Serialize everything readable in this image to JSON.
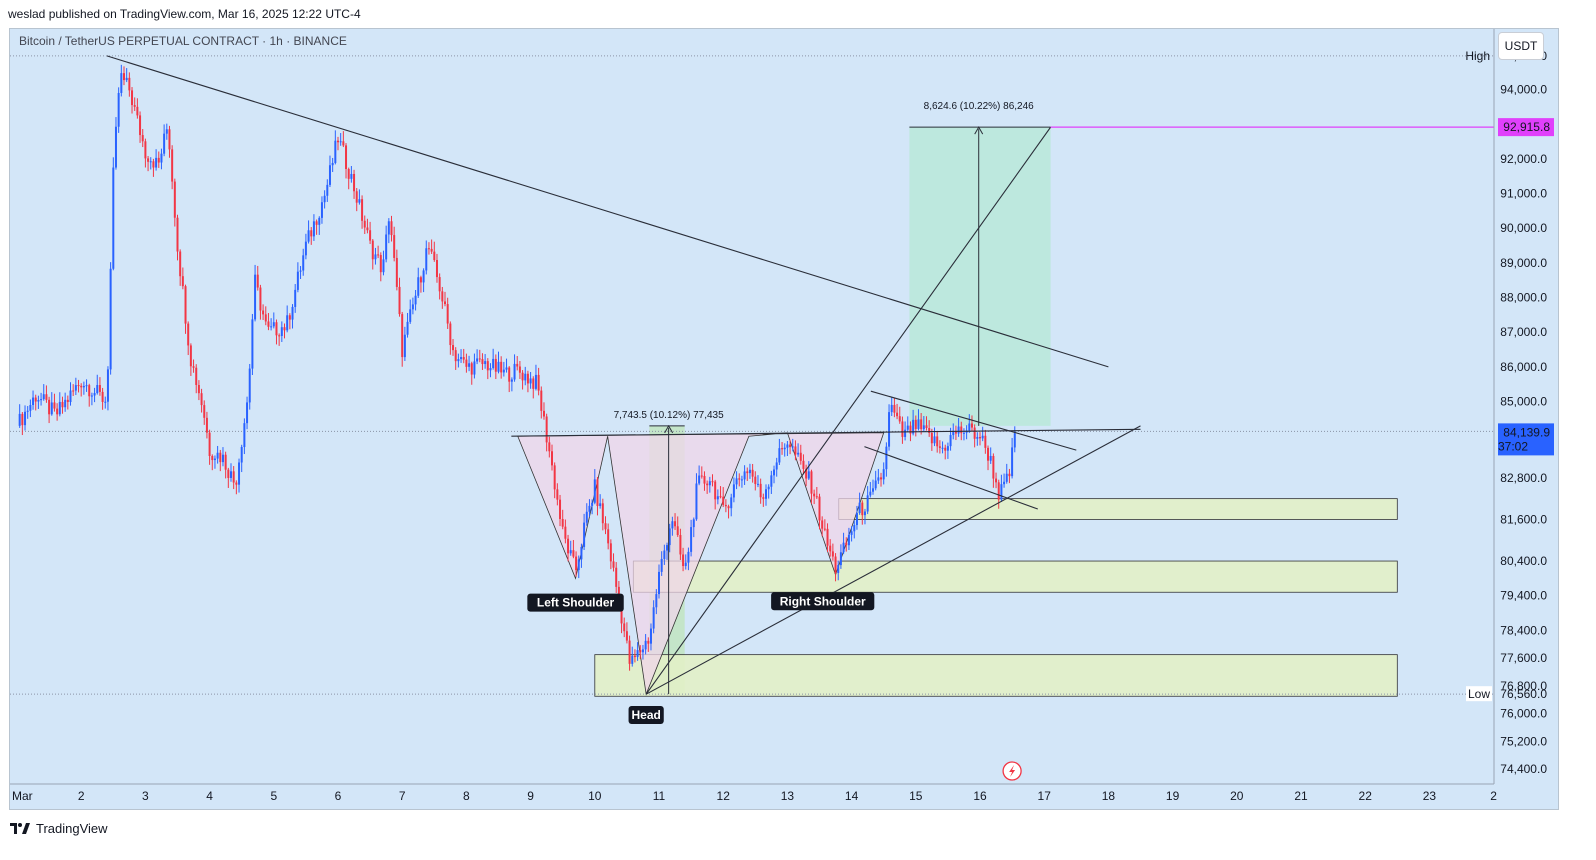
{
  "header": {
    "published": "weslad published on TradingView.com, Mar 16, 2025 12:22 UTC-4",
    "symbol": "Bitcoin / TetherUS PERPETUAL CONTRACT · 1h · BINANCE",
    "currency_button": "USDT"
  },
  "footer": {
    "brand": "TradingView"
  },
  "colors": {
    "background": "#d3e6f8",
    "bull": "#2962ff",
    "bear": "#f23645",
    "target_zone": "#b9e7d9",
    "pattern_fill": "#f0d5ea",
    "support_zone": "#e2f0c7",
    "target_line": "#e040fb",
    "current_price": "#2962ff"
  },
  "chart_data": {
    "type": "candlestick",
    "timeframe": "1h",
    "x_tick_labels": [
      "Mar",
      "2",
      "3",
      "4",
      "5",
      "6",
      "7",
      "8",
      "9",
      "10",
      "11",
      "12",
      "13",
      "14",
      "15",
      "16",
      "17",
      "18",
      "19",
      "20",
      "21",
      "22",
      "23",
      "2"
    ],
    "y_tick_labels": [
      "94,000.0",
      "93,000.0",
      "92,000.0",
      "91,000.0",
      "90,000.0",
      "89,000.0",
      "88,000.0",
      "87,000.0",
      "86,000.0",
      "85,000.0",
      "82,800.0",
      "81,600.0",
      "80,400.0",
      "79,400.0",
      "78,400.0",
      "77,600.0",
      "76,800.0",
      "76,000.0",
      "75,200.0",
      "74,400.0"
    ],
    "ylim": [
      74200,
      95400
    ],
    "high": {
      "label": "High",
      "value": "94,971.0"
    },
    "low": {
      "label": "Low",
      "value": "76,560.0"
    },
    "current_price": {
      "value": "84,139.9",
      "countdown": "37:02"
    },
    "target_price": {
      "value": "92,915.8"
    },
    "pattern_labels": [
      "Left Shoulder",
      "Head",
      "Right Shoulder"
    ],
    "measurements": [
      {
        "text": "7,743.5 (10.12%) 77,435"
      },
      {
        "text": "8,624.6 (10.22%) 86,246"
      }
    ],
    "approx_close_path": [
      {
        "day": 1.0,
        "price": 84300
      },
      {
        "day": 1.3,
        "price": 85200
      },
      {
        "day": 1.6,
        "price": 84600
      },
      {
        "day": 2.0,
        "price": 85600
      },
      {
        "day": 2.4,
        "price": 85000
      },
      {
        "day": 2.5,
        "price": 91500
      },
      {
        "day": 2.6,
        "price": 94400
      },
      {
        "day": 2.75,
        "price": 94000
      },
      {
        "day": 3.0,
        "price": 92200
      },
      {
        "day": 3.2,
        "price": 91800
      },
      {
        "day": 3.35,
        "price": 93000
      },
      {
        "day": 3.5,
        "price": 89500
      },
      {
        "day": 3.7,
        "price": 86300
      },
      {
        "day": 3.9,
        "price": 84800
      },
      {
        "day": 4.0,
        "price": 83600
      },
      {
        "day": 4.2,
        "price": 83400
      },
      {
        "day": 4.4,
        "price": 82600
      },
      {
        "day": 4.6,
        "price": 85200
      },
      {
        "day": 4.7,
        "price": 88500
      },
      {
        "day": 4.9,
        "price": 87000
      },
      {
        "day": 5.2,
        "price": 87200
      },
      {
        "day": 5.5,
        "price": 89500
      },
      {
        "day": 5.8,
        "price": 91000
      },
      {
        "day": 6.0,
        "price": 92600
      },
      {
        "day": 6.2,
        "price": 91500
      },
      {
        "day": 6.5,
        "price": 89500
      },
      {
        "day": 6.7,
        "price": 88800
      },
      {
        "day": 6.8,
        "price": 90500
      },
      {
        "day": 7.0,
        "price": 86500
      },
      {
        "day": 7.2,
        "price": 88000
      },
      {
        "day": 7.4,
        "price": 89500
      },
      {
        "day": 7.6,
        "price": 88200
      },
      {
        "day": 7.8,
        "price": 86400
      },
      {
        "day": 8.0,
        "price": 86000
      },
      {
        "day": 8.3,
        "price": 86100
      },
      {
        "day": 8.6,
        "price": 85800
      },
      {
        "day": 8.8,
        "price": 85900
      },
      {
        "day": 9.1,
        "price": 85500
      },
      {
        "day": 9.3,
        "price": 83500
      },
      {
        "day": 9.5,
        "price": 81200
      },
      {
        "day": 9.7,
        "price": 80100
      },
      {
        "day": 9.85,
        "price": 81500
      },
      {
        "day": 10.0,
        "price": 82500
      },
      {
        "day": 10.2,
        "price": 81000
      },
      {
        "day": 10.4,
        "price": 79000
      },
      {
        "day": 10.55,
        "price": 77400
      },
      {
        "day": 10.7,
        "price": 77800
      },
      {
        "day": 10.85,
        "price": 78200
      },
      {
        "day": 11.0,
        "price": 80000
      },
      {
        "day": 11.2,
        "price": 81700
      },
      {
        "day": 11.4,
        "price": 80000
      },
      {
        "day": 11.6,
        "price": 82600
      },
      {
        "day": 11.8,
        "price": 82800
      },
      {
        "day": 12.0,
        "price": 81800
      },
      {
        "day": 12.2,
        "price": 82700
      },
      {
        "day": 12.4,
        "price": 83100
      },
      {
        "day": 12.6,
        "price": 82200
      },
      {
        "day": 12.8,
        "price": 83200
      },
      {
        "day": 13.0,
        "price": 83900
      },
      {
        "day": 13.2,
        "price": 83200
      },
      {
        "day": 13.4,
        "price": 82500
      },
      {
        "day": 13.6,
        "price": 81000
      },
      {
        "day": 13.75,
        "price": 80200
      },
      {
        "day": 13.9,
        "price": 80800
      },
      {
        "day": 14.1,
        "price": 81800
      },
      {
        "day": 14.3,
        "price": 82200
      },
      {
        "day": 14.5,
        "price": 83000
      },
      {
        "day": 14.6,
        "price": 84900
      },
      {
        "day": 14.8,
        "price": 84000
      },
      {
        "day": 15.0,
        "price": 84300
      },
      {
        "day": 15.2,
        "price": 84000
      },
      {
        "day": 15.4,
        "price": 83600
      },
      {
        "day": 15.6,
        "price": 84100
      },
      {
        "day": 15.8,
        "price": 84200
      },
      {
        "day": 16.0,
        "price": 84000
      },
      {
        "day": 16.15,
        "price": 83400
      },
      {
        "day": 16.3,
        "price": 82300
      },
      {
        "day": 16.45,
        "price": 82800
      },
      {
        "day": 16.55,
        "price": 84140
      }
    ],
    "trendlines": [
      {
        "name": "descending-resistance",
        "from": {
          "day": 2.4,
          "price": 94971
        },
        "to": {
          "day": 18.0,
          "price": 86000
        }
      },
      {
        "name": "neckline",
        "from": {
          "day": 8.7,
          "price": 84000
        },
        "to": {
          "day": 18.5,
          "price": 84200
        }
      },
      {
        "name": "ascending-support",
        "from": {
          "day": 10.8,
          "price": 76560
        },
        "to": {
          "day": 18.5,
          "price": 84300
        }
      },
      {
        "name": "projection",
        "from": {
          "day": 10.8,
          "price": 76560
        },
        "to": {
          "day": 17.1,
          "price": 92915.8
        }
      },
      {
        "name": "flag-upper",
        "from": {
          "day": 14.3,
          "price": 85300
        },
        "to": {
          "day": 17.5,
          "price": 83600
        }
      },
      {
        "name": "flag-lower",
        "from": {
          "day": 14.2,
          "price": 83700
        },
        "to": {
          "day": 16.9,
          "price": 81900
        }
      }
    ],
    "zones": [
      {
        "name": "target-zone",
        "x": [
          14.9,
          17.1
        ],
        "price": [
          84300,
          92915.8
        ]
      },
      {
        "name": "head-measure-zone",
        "x": [
          10.85,
          11.4
        ],
        "price": [
          76560,
          84300
        ]
      },
      {
        "name": "support-zone-1",
        "x": [
          13.8,
          22.5
        ],
        "price": [
          81600,
          82200
        ]
      },
      {
        "name": "support-zone-2",
        "x": [
          10.6,
          22.5
        ],
        "price": [
          79500,
          80400
        ]
      },
      {
        "name": "support-zone-3",
        "x": [
          10.0,
          22.5
        ],
        "price": [
          76500,
          77700
        ]
      }
    ]
  }
}
